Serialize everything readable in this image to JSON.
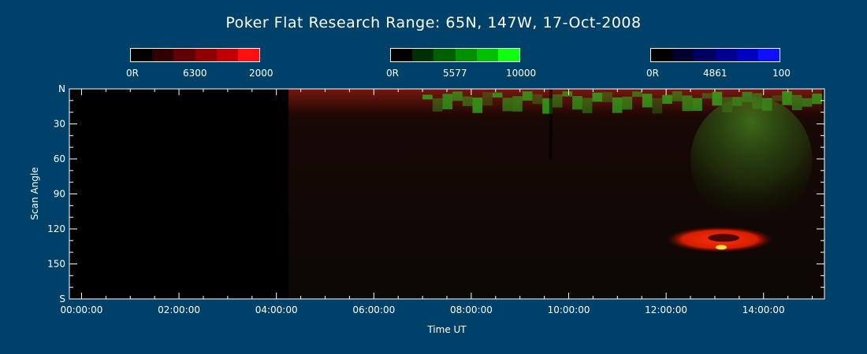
{
  "title": "Poker Flat Research Range: 65N, 147W, 17-Oct-2008",
  "colorbars": [
    {
      "name": "red-6300",
      "min_label": "0R",
      "mid_label": "6300",
      "max_label": "2000",
      "colors": [
        "#000000",
        "#300000",
        "#600000",
        "#900000",
        "#c00000",
        "#ff1010"
      ]
    },
    {
      "name": "green-5577",
      "min_label": "0R",
      "mid_label": "5577",
      "max_label": "10000",
      "colors": [
        "#000000",
        "#003000",
        "#006000",
        "#009000",
        "#00c000",
        "#10ff10"
      ]
    },
    {
      "name": "blue-4861",
      "min_label": "0R",
      "mid_label": "4861",
      "max_label": "100",
      "colors": [
        "#000000",
        "#000030",
        "#000060",
        "#000090",
        "#0000c0",
        "#1010ff"
      ]
    }
  ],
  "chart_data": {
    "type": "heatmap",
    "xlabel": "Time UT",
    "ylabel": "Scan Angle",
    "x_ticks": [
      "00:00:00",
      "02:00:00",
      "04:00:00",
      "06:00:00",
      "08:00:00",
      "10:00:00",
      "12:00:00",
      "14:00:00"
    ],
    "x_tick_hours": [
      0,
      2,
      4,
      6,
      8,
      10,
      12,
      14
    ],
    "xlim_hours": [
      -0.25,
      15.25
    ],
    "y_ticks": [
      "N",
      "30",
      "60",
      "90",
      "120",
      "150",
      "S"
    ],
    "y_tick_values": [
      0,
      30,
      60,
      90,
      120,
      150,
      180
    ],
    "ylim": [
      0,
      180
    ],
    "data_start_hour": 4.25,
    "features": [
      {
        "name": "red-auroral-band-north",
        "channel": "6300",
        "t_start": 4.25,
        "t_end": 15.2,
        "angle_start": 0,
        "angle_end": 28
      },
      {
        "name": "green-arc-structures",
        "channel": "5577",
        "t_start": 7.0,
        "t_end": 15.2,
        "angle_start": 5,
        "angle_end": 35
      },
      {
        "name": "green-diffuse-patch",
        "channel": "5577",
        "t_start": 12.5,
        "t_end": 15.0,
        "angle_start": 20,
        "angle_end": 115
      },
      {
        "name": "red-bright-spot",
        "channel": "6300",
        "t_start": 12.0,
        "t_end": 14.2,
        "angle_start": 118,
        "angle_end": 140
      }
    ]
  }
}
